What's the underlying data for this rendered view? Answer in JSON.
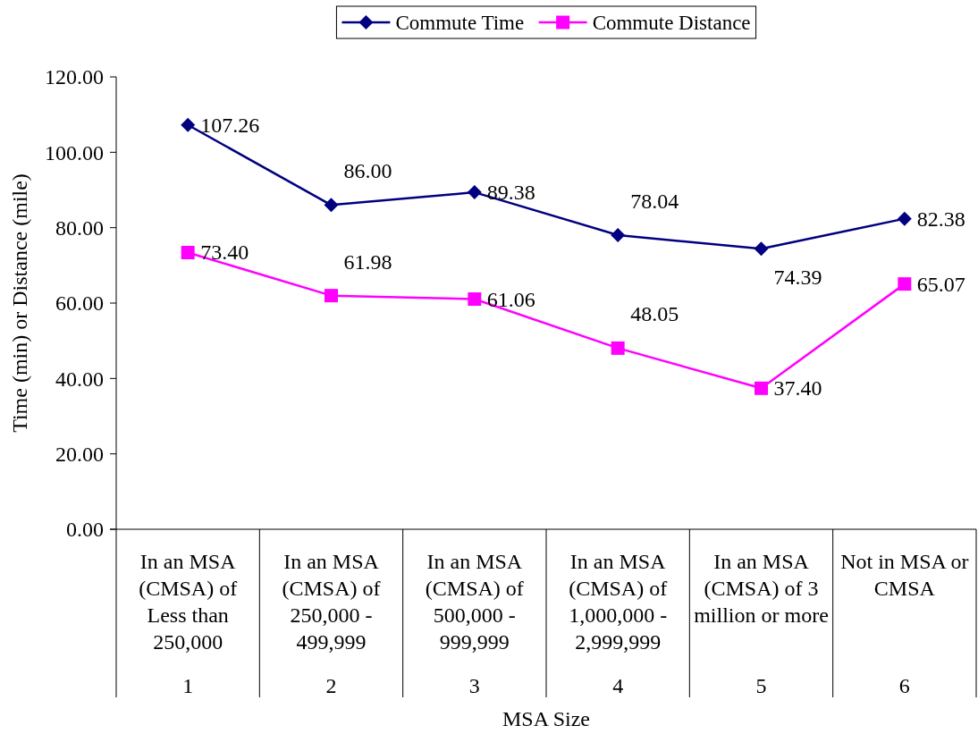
{
  "chart_data": {
    "type": "line",
    "xlabel": "MSA Size",
    "ylabel": "Time (min) or Distance (mile)",
    "categories": [
      "In an MSA (CMSA) of Less than 250,000",
      "In an MSA (CMSA) of 250,000 - 499,999",
      "In an MSA (CMSA) of 500,000 - 999,999",
      "In an MSA (CMSA) of 1,000,000 - 2,999,999",
      "In an MSA (CMSA) of 3 million or more",
      "Not in MSA or CMSA"
    ],
    "series": [
      {
        "name": "Commute Time",
        "color": "#000080",
        "marker": "diamond",
        "values": [
          107.26,
          86.0,
          89.38,
          78.04,
          74.39,
          82.38
        ],
        "value_labels": [
          "107.26",
          "86.00",
          "89.38",
          "78.04",
          "74.39",
          "82.38"
        ]
      },
      {
        "name": "Commute Distance",
        "color": "#ff00ff",
        "marker": "square",
        "values": [
          73.4,
          61.98,
          61.06,
          48.05,
          37.4,
          65.07
        ],
        "value_labels": [
          "73.40",
          "61.98",
          "61.06",
          "48.05",
          "37.40",
          "65.07"
        ]
      }
    ],
    "ylim": [
      0,
      120
    ],
    "yticks": [
      {
        "value": 0,
        "label": "0.00"
      },
      {
        "value": 20,
        "label": "20.00"
      },
      {
        "value": 40,
        "label": "40.00"
      },
      {
        "value": 60,
        "label": "60.00"
      },
      {
        "value": 80,
        "label": "80.00"
      },
      {
        "value": 100,
        "label": "100.00"
      },
      {
        "value": 120,
        "label": "120.00"
      }
    ],
    "legend": "top",
    "line_style": "solid",
    "annotations": [
      "1",
      "2",
      "3",
      "4",
      "5",
      "6"
    ]
  }
}
